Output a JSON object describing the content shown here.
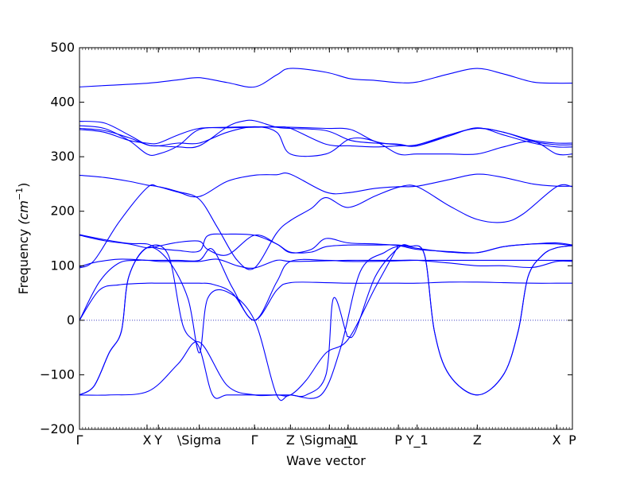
{
  "chart_data": {
    "type": "line",
    "xlabel": "Wave vector",
    "ylabel": "Frequency ",
    "ylabel_unit": "(cm",
    "ylabel_exp": "−1",
    "ylabel_close": ")",
    "ylim": [
      -200,
      500
    ],
    "yticks": [
      -200,
      -100,
      0,
      100,
      200,
      300,
      400,
      500
    ],
    "ytick_labels": [
      "−200",
      "−100",
      "0",
      "100",
      "200",
      "300",
      "400",
      "500"
    ],
    "xlim": [
      0,
      1
    ],
    "xticks": [
      {
        "x": 0.0,
        "label": "Γ"
      },
      {
        "x": 0.137,
        "label": "X"
      },
      {
        "x": 0.16,
        "label": "Y"
      },
      {
        "x": 0.243,
        "label": "\\Sigma"
      },
      {
        "x": 0.355,
        "label": "Γ"
      },
      {
        "x": 0.428,
        "label": "Z"
      },
      {
        "x": 0.507,
        "label": "\\Sigma_1"
      },
      {
        "x": 0.545,
        "label": "N"
      },
      {
        "x": 0.647,
        "label": "P"
      },
      {
        "x": 0.685,
        "label": "Y_1"
      },
      {
        "x": 0.807,
        "label": "Z"
      },
      {
        "x": 0.968,
        "label": "X"
      },
      {
        "x": 1.0,
        "label": "P"
      }
    ],
    "zero_line": true,
    "line_color": "#0000ff",
    "zero_line_color": "#0000aa",
    "series": [
      {
        "x": [
          0,
          0.06,
          0.14,
          0.2,
          0.243,
          0.3,
          0.355,
          0.4,
          0.428,
          0.5,
          0.55,
          0.6,
          0.647,
          0.685,
          0.75,
          0.807,
          0.86,
          0.92,
          0.968,
          1.0
        ],
        "y": [
          428,
          431,
          435,
          441,
          445,
          436,
          428,
          450,
          462,
          455,
          443,
          440,
          436,
          437,
          452,
          462,
          452,
          437,
          435,
          435
        ]
      },
      {
        "x": [
          0,
          0.05,
          0.1,
          0.137,
          0.16,
          0.2,
          0.243,
          0.3,
          0.33,
          0.355,
          0.4,
          0.428,
          0.5,
          0.55,
          0.6,
          0.647,
          0.685,
          0.75,
          0.807,
          0.86,
          0.92,
          0.968,
          1.0
        ],
        "y": [
          365,
          362,
          340,
          322,
          320,
          318,
          320,
          355,
          365,
          366,
          354,
          352,
          348,
          330,
          325,
          323,
          320,
          340,
          352,
          345,
          328,
          322,
          322
        ]
      },
      {
        "x": [
          0,
          0.05,
          0.1,
          0.137,
          0.16,
          0.2,
          0.243,
          0.3,
          0.355,
          0.4,
          0.428,
          0.5,
          0.55,
          0.6,
          0.647,
          0.685,
          0.75,
          0.807,
          0.86,
          0.92,
          0.968,
          1.0
        ],
        "y": [
          357,
          352,
          330,
          305,
          305,
          320,
          350,
          353,
          354,
          355,
          354,
          352,
          350,
          328,
          322,
          320,
          338,
          353,
          340,
          325,
          318,
          318
        ]
      },
      {
        "x": [
          0,
          0.05,
          0.1,
          0.137,
          0.16,
          0.2,
          0.243,
          0.3,
          0.355,
          0.4,
          0.428,
          0.5,
          0.55,
          0.6,
          0.647,
          0.685,
          0.75,
          0.807,
          0.86,
          0.92,
          0.968,
          1.0
        ],
        "y": [
          350,
          345,
          330,
          325,
          325,
          340,
          352,
          354,
          355,
          354,
          352,
          323,
          320,
          318,
          320,
          322,
          340,
          352,
          345,
          330,
          325,
          325
        ]
      },
      {
        "x": [
          0,
          0.05,
          0.1,
          0.137,
          0.16,
          0.2,
          0.243,
          0.3,
          0.355,
          0.4,
          0.428,
          0.5,
          0.55,
          0.6,
          0.647,
          0.685,
          0.75,
          0.807,
          0.86,
          0.92,
          0.968,
          1.0
        ],
        "y": [
          352,
          348,
          335,
          322,
          320,
          325,
          325,
          345,
          355,
          345,
          305,
          305,
          333,
          328,
          305,
          305,
          305,
          305,
          318,
          328,
          305,
          305
        ]
      },
      {
        "x": [
          0,
          0.05,
          0.1,
          0.137,
          0.16,
          0.2,
          0.243,
          0.3,
          0.355,
          0.4,
          0.428,
          0.5,
          0.545,
          0.6,
          0.647,
          0.685,
          0.75,
          0.807,
          0.86,
          0.92,
          0.968,
          1.0
        ],
        "y": [
          266,
          262,
          255,
          248,
          245,
          235,
          227,
          255,
          266,
          267,
          268,
          235,
          234,
          242,
          245,
          246,
          258,
          268,
          262,
          250,
          246,
          246
        ]
      },
      {
        "x": [
          0,
          0.03,
          0.08,
          0.137,
          0.16,
          0.2,
          0.243,
          0.28,
          0.32,
          0.355,
          0.4,
          0.428,
          0.47,
          0.5,
          0.545,
          0.6,
          0.647,
          0.685,
          0.75,
          0.807,
          0.86,
          0.9,
          0.968,
          1.0
        ],
        "y": [
          96,
          110,
          180,
          243,
          245,
          236,
          222,
          170,
          110,
          96,
          160,
          183,
          205,
          225,
          207,
          228,
          244,
          245,
          210,
          185,
          180,
          195,
          245,
          245
        ]
      },
      {
        "x": [
          0,
          0.05,
          0.1,
          0.137,
          0.16,
          0.2,
          0.243,
          0.26,
          0.3,
          0.355,
          0.4,
          0.428,
          0.47,
          0.5,
          0.545,
          0.6,
          0.647,
          0.685,
          0.75,
          0.807,
          0.86,
          0.92,
          0.968,
          1.0
        ],
        "y": [
          157,
          148,
          141,
          140,
          132,
          128,
          127,
          155,
          158,
          156,
          140,
          125,
          125,
          135,
          138,
          138,
          138,
          132,
          125,
          124,
          135,
          140,
          142,
          138
        ]
      },
      {
        "x": [
          0,
          0.05,
          0.1,
          0.137,
          0.16,
          0.2,
          0.243,
          0.26,
          0.3,
          0.355,
          0.4,
          0.428,
          0.47,
          0.5,
          0.545,
          0.6,
          0.647,
          0.685,
          0.75,
          0.807,
          0.86,
          0.92,
          0.968,
          1.0
        ],
        "y": [
          156,
          146,
          140,
          133,
          136,
          143,
          145,
          130,
          120,
          156,
          140,
          124,
          130,
          150,
          142,
          140,
          137,
          130,
          126,
          124,
          135,
          140,
          140,
          137
        ]
      },
      {
        "x": [
          0,
          0.03,
          0.08,
          0.137,
          0.16,
          0.2,
          0.243,
          0.28,
          0.32,
          0.355,
          0.4,
          0.428,
          0.5,
          0.545,
          0.6,
          0.647,
          0.685,
          0.75,
          0.807,
          0.86,
          0.92,
          0.968,
          1.0
        ],
        "y": [
          98,
          106,
          112,
          110,
          108,
          108,
          108,
          112,
          100,
          96,
          110,
          108,
          109,
          110,
          110,
          110,
          110,
          105,
          100,
          100,
          97,
          108,
          108
        ]
      },
      {
        "x": [
          0,
          0.04,
          0.08,
          0.12,
          0.137,
          0.16,
          0.2,
          0.243,
          0.27,
          0.31,
          0.355,
          0.4,
          0.428,
          0.5,
          0.545,
          0.6,
          0.647,
          0.685,
          0.75,
          0.807,
          0.86,
          0.92,
          0.968,
          1.0
        ],
        "y": [
          0,
          70,
          105,
          110,
          110,
          110,
          110,
          110,
          130,
          60,
          0,
          70,
          108,
          110,
          108,
          108,
          109,
          110,
          110,
          110,
          110,
          110,
          110,
          110
        ]
      },
      {
        "x": [
          0,
          0.04,
          0.08,
          0.137,
          0.16,
          0.2,
          0.243,
          0.27,
          0.31,
          0.355,
          0.4,
          0.428,
          0.5,
          0.545,
          0.6,
          0.647,
          0.685,
          0.75,
          0.807,
          0.86,
          0.92,
          0.968,
          1.0
        ],
        "y": [
          0,
          55,
          65,
          68,
          68,
          68,
          68,
          66,
          50,
          0,
          55,
          69,
          69,
          68,
          68,
          68,
          68,
          70,
          70,
          69,
          68,
          68,
          68
        ]
      },
      {
        "x": [
          0,
          0.03,
          0.06,
          0.085,
          0.1,
          0.137,
          0.18,
          0.22,
          0.243,
          0.26,
          0.3,
          0.355,
          0.4,
          0.428,
          0.49,
          0.53,
          0.57,
          0.62,
          0.647,
          0.67,
          0.7,
          0.72,
          0.75,
          0.807,
          0.86,
          0.89,
          0.91,
          0.94,
          0.968,
          1.0
        ],
        "y": [
          -137,
          -120,
          -60,
          -20,
          80,
          133,
          110,
          40,
          -60,
          40,
          52,
          0,
          -137,
          -137,
          -137,
          -50,
          90,
          125,
          136,
          136,
          120,
          -20,
          -100,
          -137,
          -100,
          -20,
          80,
          120,
          133,
          137
        ]
      },
      {
        "x": [
          0,
          0.03,
          0.06,
          0.085,
          0.1,
          0.137,
          0.18,
          0.21,
          0.243,
          0.27,
          0.3,
          0.355,
          0.4,
          0.428,
          0.46,
          0.5,
          0.515,
          0.54,
          0.545,
          0.56,
          0.6,
          0.647,
          0.67,
          0.7,
          0.72,
          0.75,
          0.807,
          0.86,
          0.89,
          0.91,
          0.94,
          0.968,
          1.0
        ],
        "y": [
          -137,
          -120,
          -60,
          -20,
          80,
          133,
          120,
          -10,
          -50,
          -137,
          -137,
          -137,
          -137,
          -137,
          -137,
          -100,
          40,
          -20,
          -30,
          -20,
          80,
          133,
          136,
          120,
          -20,
          -100,
          -137,
          -100,
          -20,
          80,
          120,
          133,
          137
        ]
      },
      {
        "x": [
          0,
          0.06,
          0.14,
          0.2,
          0.243,
          0.3,
          0.355,
          0.4,
          0.428,
          0.46,
          0.5,
          0.545,
          0.6,
          0.647
        ],
        "y": [
          -137,
          -137,
          -130,
          -80,
          -40,
          -120,
          -137,
          -137,
          -137,
          -110,
          -60,
          -35,
          60,
          137
        ]
      }
    ]
  }
}
